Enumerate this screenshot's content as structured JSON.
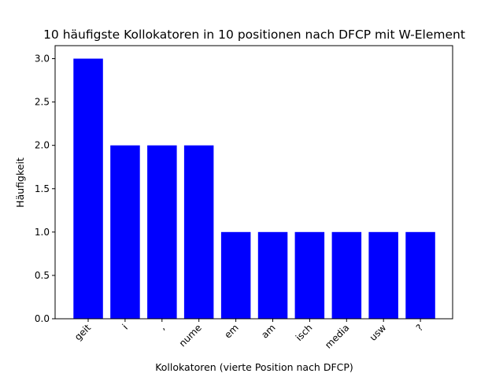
{
  "chart_data": {
    "type": "bar",
    "title": "10 häufigste Kollokatoren in 10 positionen nach DFCP mit W-Element",
    "xlabel": "Kollokatoren (vierte Position nach DFCP)",
    "ylabel": "Häufigkeit",
    "categories": [
      "geit",
      "i",
      ",",
      "nume",
      "em",
      "am",
      "isch",
      "media",
      "usw",
      "?"
    ],
    "values": [
      3,
      2,
      2,
      2,
      1,
      1,
      1,
      1,
      1,
      1
    ],
    "ylim": [
      0,
      3.15
    ],
    "yticks": [
      "0.0",
      "0.5",
      "1.0",
      "1.5",
      "2.0",
      "2.5",
      "3.0"
    ],
    "bar_color": "#0000ff",
    "grid": false,
    "legend": "none"
  }
}
